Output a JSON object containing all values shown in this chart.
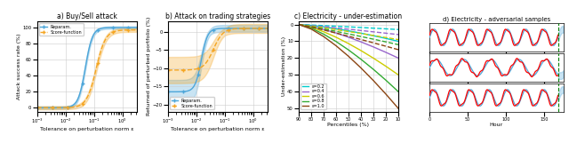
{
  "panel_a_title": "a) Buy/Sell attack",
  "panel_b_title": "b) Attack on trading strategies",
  "panel_c_title": "c) Electricity - under-estimation",
  "panel_d_title": "d) Electricity - adversarial samples",
  "xlabel_ab": "Tolerance on perturbation norm ε",
  "ylabel_a": "Attack success rate (%)",
  "ylabel_b": "Returned of perturbed portfolio (%)",
  "ylabel_c": "Under-estimation (%)",
  "xlabel_c": "Percentiles (%)",
  "xlabel_d": "Hour",
  "legend_reparam": "Reparam.",
  "legend_score": "Score-function",
  "blue_color": "#4da6d9",
  "orange_color": "#f5a623",
  "eps_colors": [
    "#00cccc",
    "#9966cc",
    "#cccc00",
    "#33aa33",
    "#8b4513"
  ],
  "eps_labels": [
    "ε=0.2",
    "ε=0.4",
    "ε=0.6",
    "ε=0.8",
    "ε=1.0"
  ],
  "eps_values": [
    0.2,
    0.4,
    0.6,
    0.8,
    1.0
  ]
}
